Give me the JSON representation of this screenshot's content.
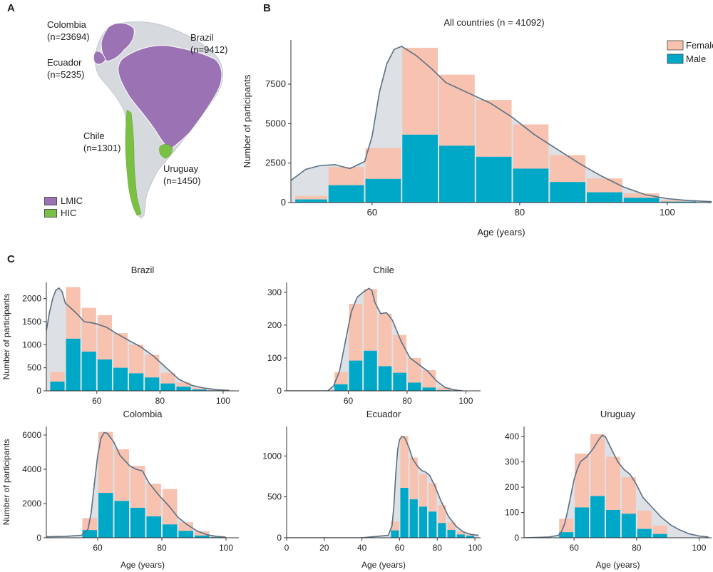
{
  "panels": {
    "a": "A",
    "b": "B",
    "c": "C"
  },
  "colors": {
    "female": "#f7c2b0",
    "male": "#00a8c8",
    "kde_fill": "#dde1e6",
    "kde_line": "#5b7083",
    "lmic": "#9b72b3",
    "hic": "#7ac143",
    "land": "#d6dadf"
  },
  "map": {
    "countries": [
      {
        "name": "Colombia",
        "n": "(n=23694)"
      },
      {
        "name": "Brazil",
        "n": "(n=9412)"
      },
      {
        "name": "Ecuador",
        "n": "(n=5235)"
      },
      {
        "name": "Chile",
        "n": "(n=1301)"
      },
      {
        "name": "Uruguay",
        "n": "(n=1450)"
      }
    ],
    "legend": [
      {
        "label": "LMIC",
        "color": "#9b72b3"
      },
      {
        "label": "HIC",
        "color": "#7ac143"
      }
    ]
  },
  "chart_data": [
    {
      "id": "all",
      "type": "bar",
      "stacked": true,
      "title": "All countries (n = 41092)",
      "xlabel": "Age (years)",
      "ylabel": "Number of participants",
      "xlim": [
        49,
        106
      ],
      "ylim": [
        0,
        10300
      ],
      "xticks": [
        60,
        80,
        100
      ],
      "yticks": [
        0,
        2500,
        5000,
        7500
      ],
      "legend": [
        "Female",
        "Male"
      ],
      "bin_edges": [
        49.5,
        54,
        59,
        64,
        69,
        74,
        79,
        84,
        89,
        94,
        99,
        104
      ],
      "series": [
        {
          "name": "Male",
          "values": [
            200,
            1100,
            1500,
            4300,
            3600,
            2900,
            2150,
            1300,
            650,
            300,
            60
          ]
        },
        {
          "name": "Female",
          "values": [
            220,
            1150,
            1950,
            5500,
            4500,
            3600,
            2800,
            1700,
            880,
            280,
            100
          ]
        }
      ],
      "kde": {
        "x": [
          49,
          51,
          53,
          55,
          57,
          59,
          60,
          61,
          62,
          63,
          64,
          66,
          68,
          70,
          73,
          76,
          79,
          82,
          85,
          88,
          91,
          94,
          97,
          100,
          103,
          106
        ],
        "y": [
          1400,
          2100,
          2350,
          2400,
          2150,
          2600,
          4200,
          7000,
          8800,
          9700,
          9900,
          9300,
          8500,
          7600,
          6950,
          6300,
          5400,
          4300,
          3400,
          2500,
          1700,
          1000,
          500,
          250,
          120,
          60
        ]
      }
    },
    {
      "id": "brazil",
      "type": "bar",
      "stacked": true,
      "title": "Brazil",
      "xlabel": "",
      "ylabel": "Number of participants",
      "xlim": [
        44,
        105
      ],
      "ylim": [
        0,
        2350
      ],
      "xticks": [
        60,
        80,
        100
      ],
      "yticks": [
        0,
        500,
        1000,
        1500,
        2000
      ],
      "bin_edges": [
        45,
        50,
        55,
        60,
        65,
        70,
        75,
        80,
        85,
        90,
        95,
        100
      ],
      "series": [
        {
          "name": "Male",
          "values": [
            200,
            1130,
            850,
            680,
            500,
            380,
            290,
            160,
            90,
            30,
            10
          ]
        },
        {
          "name": "Female",
          "values": [
            210,
            1120,
            950,
            960,
            750,
            620,
            490,
            230,
            90,
            40,
            10
          ]
        }
      ],
      "kde": {
        "x": [
          44,
          45,
          46,
          47,
          48,
          49,
          50,
          52,
          54,
          56,
          58,
          60,
          63,
          66,
          70,
          74,
          78,
          82,
          86,
          90,
          94,
          98,
          102
        ],
        "y": [
          1300,
          1700,
          2000,
          2180,
          2230,
          2150,
          1900,
          1780,
          1650,
          1500,
          1480,
          1450,
          1380,
          1250,
          1100,
          950,
          750,
          500,
          250,
          120,
          60,
          25,
          10
        ]
      }
    },
    {
      "id": "chile",
      "type": "bar",
      "stacked": true,
      "title": "Chile",
      "xlabel": "",
      "ylabel": "",
      "xlim": [
        39,
        105
      ],
      "ylim": [
        0,
        330
      ],
      "xticks": [
        60,
        80,
        100
      ],
      "yticks": [
        0,
        100,
        200,
        300
      ],
      "bin_edges": [
        55,
        60,
        65,
        70,
        75,
        80,
        85,
        90,
        95
      ],
      "series": [
        {
          "name": "Male",
          "values": [
            20,
            92,
            122,
            75,
            55,
            25,
            10,
            2
          ]
        },
        {
          "name": "Female",
          "values": [
            37,
            173,
            188,
            160,
            115,
            75,
            53,
            8
          ]
        }
      ],
      "kde": {
        "x": [
          39,
          53,
          55,
          57,
          59,
          61,
          63,
          65,
          67,
          68,
          69,
          71,
          73,
          75,
          78,
          81,
          84,
          87,
          90,
          93,
          96,
          99
        ],
        "y": [
          0,
          0,
          15,
          60,
          150,
          240,
          285,
          300,
          312,
          305,
          270,
          235,
          238,
          215,
          150,
          100,
          80,
          60,
          30,
          10,
          3,
          0
        ]
      }
    },
    {
      "id": "colombia",
      "type": "bar",
      "stacked": true,
      "title": "Colombia",
      "xlabel": "Age (years)",
      "ylabel": "Number of participants",
      "xlim": [
        44,
        104
      ],
      "ylim": [
        0,
        6500
      ],
      "xticks": [
        60,
        80,
        100
      ],
      "yticks": [
        0,
        2000,
        4000,
        6000
      ],
      "bin_edges": [
        55,
        60,
        65,
        70,
        75,
        80,
        85,
        90,
        95,
        100
      ],
      "series": [
        {
          "name": "Male",
          "values": [
            450,
            2620,
            2150,
            1750,
            1250,
            780,
            400,
            130,
            40
          ]
        },
        {
          "name": "Female",
          "values": [
            700,
            3560,
            3020,
            2450,
            1900,
            2070,
            500,
            250,
            60
          ]
        }
      ],
      "kde": {
        "x": [
          44,
          50,
          55,
          57,
          58,
          59,
          60,
          61,
          62,
          63,
          65,
          67,
          70,
          72,
          74,
          76,
          79,
          82,
          85,
          88,
          91,
          94,
          97,
          100
        ],
        "y": [
          60,
          80,
          150,
          500,
          1500,
          3200,
          4800,
          5800,
          6150,
          6100,
          5600,
          4800,
          4200,
          4000,
          3900,
          3200,
          2500,
          1900,
          1200,
          750,
          400,
          180,
          80,
          30
        ]
      }
    },
    {
      "id": "ecuador",
      "type": "bar",
      "stacked": true,
      "title": "Ecuador",
      "xlabel": "Age (years)",
      "ylabel": "",
      "xlim": [
        0,
        103
      ],
      "ylim": [
        0,
        1360
      ],
      "xticks": [
        0,
        20,
        40,
        60,
        80,
        100
      ],
      "yticks": [
        0,
        500,
        1000
      ],
      "bin_edges": [
        55,
        60,
        65,
        70,
        75,
        80,
        85,
        90,
        95,
        100
      ],
      "series": [
        {
          "name": "Male",
          "values": [
            90,
            610,
            470,
            380,
            320,
            180,
            95,
            40,
            25
          ]
        },
        {
          "name": "Female",
          "values": [
            110,
            635,
            510,
            400,
            350,
            220,
            95,
            40,
            25
          ]
        }
      ],
      "kde": {
        "x": [
          0,
          40,
          54,
          56,
          57,
          58,
          59,
          60,
          61,
          62,
          63,
          65,
          67,
          70,
          72,
          74,
          76,
          79,
          82,
          86,
          90,
          94,
          98,
          102
        ],
        "y": [
          0,
          0,
          30,
          150,
          400,
          800,
          1080,
          1200,
          1230,
          1240,
          1210,
          1100,
          960,
          860,
          820,
          800,
          760,
          620,
          450,
          260,
          140,
          70,
          40,
          30
        ]
      }
    },
    {
      "id": "uruguay",
      "type": "bar",
      "stacked": true,
      "title": "Uruguay",
      "xlabel": "Age (years)",
      "ylabel": "",
      "xlim": [
        44,
        104
      ],
      "ylim": [
        0,
        440
      ],
      "xticks": [
        60,
        80,
        100
      ],
      "yticks": [
        0,
        100,
        200,
        300,
        400
      ],
      "bin_edges": [
        55,
        60,
        65,
        70,
        75,
        80,
        85,
        90
      ],
      "series": [
        {
          "name": "Male",
          "values": [
            22,
            120,
            165,
            110,
            95,
            35,
            15
          ]
        },
        {
          "name": "Female",
          "values": [
            53,
            213,
            245,
            210,
            145,
            72,
            33
          ]
        }
      ],
      "kde": {
        "x": [
          44,
          52,
          55,
          56,
          57,
          58,
          59,
          60,
          61,
          62,
          64,
          66,
          68,
          69,
          70,
          72,
          74,
          76,
          78,
          80,
          82,
          85,
          88,
          91,
          94,
          97,
          100,
          103
        ],
        "y": [
          0,
          3,
          10,
          25,
          55,
          110,
          170,
          230,
          270,
          300,
          320,
          350,
          390,
          405,
          400,
          350,
          300,
          270,
          250,
          210,
          160,
          120,
          80,
          50,
          30,
          15,
          7,
          3
        ]
      }
    }
  ]
}
